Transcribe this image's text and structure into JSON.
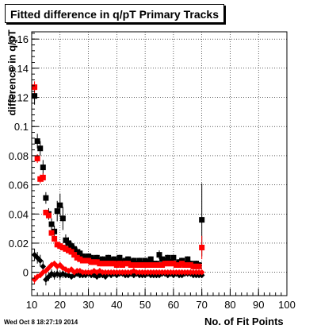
{
  "chart_data": {
    "type": "scatter",
    "title": "Fitted difference in q/pT Primary Tracks",
    "xlabel": "No. of Fit Points",
    "ylabel": "difference in q/pT",
    "xlim": [
      10,
      100
    ],
    "ylim": [
      -0.016,
      0.165
    ],
    "grid": true,
    "x_ticks": [
      "10",
      "20",
      "30",
      "40",
      "50",
      "60",
      "70",
      "80",
      "90",
      "100"
    ],
    "y_ticks": [
      "0",
      "0.02",
      "0.04",
      "0.06",
      "0.08",
      "0.1",
      "0.12",
      "0.14",
      "0.16"
    ],
    "y_tick_values": [
      0,
      0.02,
      0.04,
      0.06,
      0.08,
      0.1,
      0.12,
      0.14,
      0.16
    ],
    "series": [
      {
        "marker": "square",
        "color": "#000000",
        "x": [
          11,
          12,
          13,
          14,
          15,
          16,
          17,
          18,
          19,
          20,
          21,
          22,
          23,
          24,
          25,
          26,
          27,
          28,
          29,
          30,
          31,
          32,
          33,
          34,
          35,
          36,
          37,
          38,
          39,
          40,
          41,
          42,
          43,
          44,
          45,
          46,
          47,
          48,
          49,
          50,
          51,
          52,
          53,
          54,
          55,
          56,
          57,
          58,
          59,
          60,
          61,
          62,
          63,
          64,
          65,
          66,
          67,
          68,
          69,
          70
        ],
        "y": [
          0.121,
          0.09,
          0.085,
          0.072,
          0.051,
          0.04,
          0.033,
          0.028,
          0.042,
          0.046,
          0.037,
          0.022,
          0.02,
          0.018,
          0.016,
          0.014,
          0.013,
          0.011,
          0.01,
          0.011,
          0.01,
          0.009,
          0.01,
          0.008,
          0.009,
          0.008,
          0.01,
          0.008,
          0.009,
          0.007,
          0.01,
          0.007,
          0.008,
          0.009,
          0.007,
          0.008,
          0.006,
          0.008,
          0.006,
          0.008,
          0.007,
          0.009,
          0.006,
          0.006,
          0.012,
          0.009,
          0.008,
          0.01,
          0.007,
          0.01,
          0.006,
          0.007,
          0.008,
          0.006,
          0.009,
          0.006,
          0.005,
          0.006,
          0.005,
          0.036
        ],
        "err": [
          0.006,
          0.005,
          0.005,
          0.005,
          0.004,
          0.004,
          0.004,
          0.004,
          0.007,
          0.008,
          0.008,
          0.004,
          0.004,
          0.003,
          0.003,
          0.003,
          0.003,
          0.002,
          0.002,
          0.002,
          0.002,
          0.002,
          0.002,
          0.002,
          0.002,
          0.002,
          0.002,
          0.002,
          0.002,
          0.002,
          0.002,
          0.002,
          0.002,
          0.002,
          0.002,
          0.002,
          0.002,
          0.002,
          0.002,
          0.002,
          0.002,
          0.002,
          0.002,
          0.002,
          0.003,
          0.002,
          0.002,
          0.002,
          0.002,
          0.002,
          0.002,
          0.002,
          0.002,
          0.002,
          0.002,
          0.002,
          0.002,
          0.002,
          0.002,
          0.025
        ]
      },
      {
        "marker": "square",
        "color": "#ff0000",
        "x": [
          11,
          12,
          13,
          14,
          15,
          16,
          17,
          18,
          19,
          20,
          21,
          22,
          23,
          24,
          25,
          26,
          27,
          28,
          29,
          30,
          31,
          32,
          33,
          34,
          35,
          36,
          37,
          38,
          39,
          40,
          41,
          42,
          43,
          44,
          45,
          46,
          47,
          48,
          49,
          50,
          51,
          52,
          53,
          54,
          55,
          56,
          57,
          58,
          59,
          60,
          61,
          62,
          63,
          64,
          65,
          66,
          67,
          68,
          69,
          70
        ],
        "y": [
          0.127,
          0.078,
          0.064,
          0.065,
          0.041,
          0.039,
          0.027,
          0.023,
          0.019,
          0.018,
          0.017,
          0.016,
          0.015,
          0.014,
          0.012,
          0.01,
          0.009,
          0.008,
          0.008,
          0.008,
          0.007,
          0.007,
          0.007,
          0.006,
          0.006,
          0.006,
          0.006,
          0.006,
          0.006,
          0.005,
          0.006,
          0.005,
          0.006,
          0.006,
          0.005,
          0.005,
          0.005,
          0.005,
          0.005,
          0.005,
          0.005,
          0.005,
          0.005,
          0.005,
          0.005,
          0.005,
          0.006,
          0.006,
          0.006,
          0.006,
          0.005,
          0.005,
          0.006,
          0.005,
          0.005,
          0.005,
          0.004,
          0.004,
          0.004,
          0.017
        ],
        "err": [
          0.004,
          0.003,
          0.003,
          0.003,
          0.002,
          0.002,
          0.002,
          0.002,
          0.002,
          0.002,
          0.002,
          0.001,
          0.001,
          0.001,
          0.001,
          0.001,
          0.001,
          0.001,
          0.001,
          0.001,
          0.001,
          0.001,
          0.001,
          0.001,
          0.001,
          0.001,
          0.001,
          0.001,
          0.001,
          0.001,
          0.001,
          0.001,
          0.001,
          0.001,
          0.001,
          0.001,
          0.001,
          0.001,
          0.001,
          0.001,
          0.001,
          0.001,
          0.001,
          0.001,
          0.001,
          0.001,
          0.001,
          0.001,
          0.001,
          0.001,
          0.001,
          0.001,
          0.001,
          0.001,
          0.001,
          0.001,
          0.001,
          0.001,
          0.001,
          0.008
        ]
      },
      {
        "marker": "diamond",
        "color": "#000000",
        "x": [
          11,
          12,
          13,
          14,
          15,
          16,
          17,
          18,
          19,
          20,
          21,
          22,
          23,
          24,
          25,
          26,
          27,
          28,
          29,
          30,
          31,
          32,
          33,
          34,
          35,
          36,
          37,
          38,
          39,
          40,
          41,
          42,
          43,
          44,
          45,
          46,
          47,
          48,
          49,
          50,
          51,
          52,
          53,
          54,
          55,
          56,
          57,
          58,
          59,
          60,
          61,
          62,
          63,
          64,
          65,
          66,
          67,
          68,
          69,
          70
        ],
        "y": [
          0.012,
          0.01,
          0.008,
          0.004,
          -0.005,
          -0.003,
          -0.001,
          -0.002,
          -0.001,
          -0.002,
          -0.001,
          -0.002,
          -0.002,
          -0.003,
          -0.002,
          -0.001,
          -0.002,
          -0.002,
          -0.002,
          -0.001,
          -0.002,
          -0.002,
          -0.003,
          -0.002,
          -0.002,
          -0.003,
          -0.001,
          -0.002,
          -0.001,
          -0.002,
          -0.001,
          -0.001,
          -0.002,
          -0.002,
          -0.001,
          -0.002,
          -0.001,
          -0.002,
          -0.002,
          -0.002,
          -0.001,
          -0.002,
          -0.002,
          -0.002,
          -0.002,
          -0.001,
          -0.001,
          -0.002,
          -0.001,
          -0.002,
          -0.001,
          -0.002,
          -0.002,
          -0.001,
          -0.001,
          -0.001,
          -0.002,
          -0.002,
          -0.002,
          -0.002
        ],
        "err": [
          0.004,
          0.004,
          0.004,
          0.004,
          0.004,
          0.003,
          0.003,
          0.003,
          0.003,
          0.003,
          0.003,
          0.002,
          0.002,
          0.002,
          0.002,
          0.002,
          0.002,
          0.002,
          0.002,
          0.002,
          0.002,
          0.002,
          0.002,
          0.002,
          0.002,
          0.002,
          0.002,
          0.002,
          0.002,
          0.002,
          0.002,
          0.002,
          0.002,
          0.002,
          0.002,
          0.002,
          0.002,
          0.002,
          0.002,
          0.002,
          0.002,
          0.002,
          0.002,
          0.002,
          0.002,
          0.002,
          0.002,
          0.002,
          0.002,
          0.002,
          0.002,
          0.002,
          0.002,
          0.002,
          0.002,
          0.002,
          0.002,
          0.002,
          0.002,
          0.002
        ]
      },
      {
        "marker": "diamond",
        "color": "#ff0000",
        "x": [
          11,
          12,
          13,
          14,
          15,
          16,
          17,
          18,
          19,
          20,
          21,
          22,
          23,
          24,
          25,
          26,
          27,
          28,
          29,
          30,
          31,
          32,
          33,
          34,
          35,
          36,
          37,
          38,
          39,
          40,
          41,
          42,
          43,
          44,
          45,
          46,
          47,
          48,
          49,
          50,
          51,
          52,
          53,
          54,
          55,
          56,
          57,
          58,
          59,
          60,
          61,
          62,
          63,
          64,
          65,
          66,
          67,
          68,
          69,
          70
        ],
        "y": [
          -0.005,
          -0.003,
          -0.002,
          0.0,
          0.001,
          0.003,
          0.005,
          0.006,
          0.004,
          0.005,
          0.003,
          0.002,
          0.001,
          0.002,
          0.0,
          0.001,
          0.001,
          0.0,
          0.0,
          0.0,
          0.0,
          0.001,
          0.0,
          0.001,
          0.0,
          0.0,
          0.0,
          0.0,
          0.0,
          0.0,
          0.0,
          0.0,
          0.0,
          0.0,
          0.0,
          0.001,
          0.0,
          0.0,
          0.0,
          0.0,
          0.0,
          0.0,
          0.0,
          0.0,
          0.0,
          0.0,
          0.0,
          0.0,
          0.0,
          0.0,
          0.0,
          0.0,
          0.0,
          0.0,
          0.0,
          0.0,
          0.0,
          0.0,
          0.0,
          0.0
        ],
        "err": [
          0.003,
          0.002,
          0.002,
          0.002,
          0.002,
          0.002,
          0.002,
          0.002,
          0.002,
          0.002,
          0.001,
          0.001,
          0.001,
          0.001,
          0.001,
          0.001,
          0.001,
          0.001,
          0.001,
          0.001,
          0.001,
          0.001,
          0.001,
          0.001,
          0.001,
          0.001,
          0.001,
          0.001,
          0.001,
          0.001,
          0.001,
          0.001,
          0.001,
          0.001,
          0.001,
          0.001,
          0.001,
          0.001,
          0.001,
          0.001,
          0.001,
          0.001,
          0.001,
          0.001,
          0.001,
          0.001,
          0.001,
          0.001,
          0.001,
          0.001,
          0.001,
          0.001,
          0.001,
          0.001,
          0.001,
          0.001,
          0.001,
          0.001,
          0.001,
          0.001
        ]
      }
    ]
  },
  "footer": {
    "timestamp": "Wed Oct  8 18:27:19 2014"
  }
}
